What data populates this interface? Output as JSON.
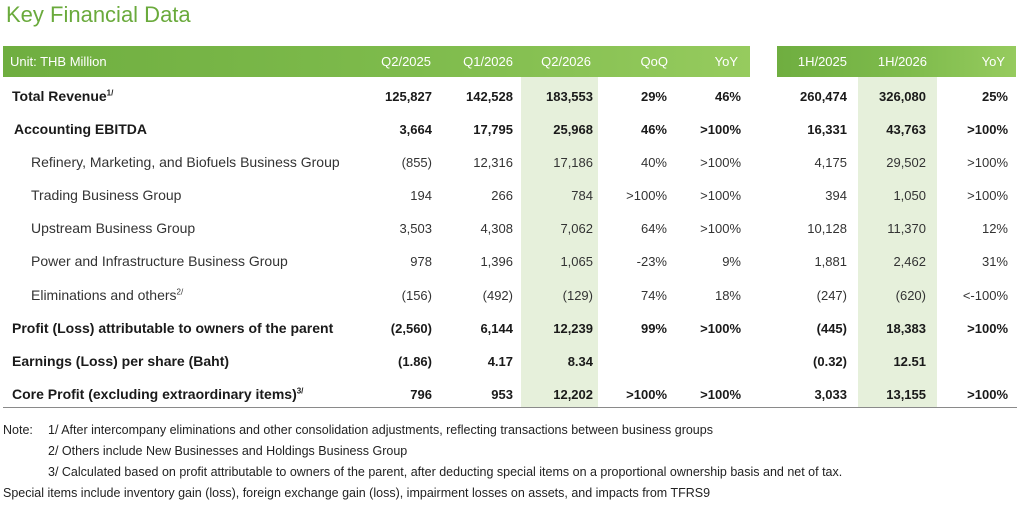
{
  "title": "Key Financial Data",
  "header": {
    "unit": "Unit: THB Million",
    "cols": [
      "Q2/2025",
      "Q1/2026",
      "Q2/2026",
      "QoQ",
      "YoY"
    ],
    "cols_right": [
      "1H/2025",
      "1H/2026",
      "YoY"
    ]
  },
  "rows": [
    {
      "label": "Total Revenue",
      "sup": "1/",
      "vals": [
        "125,827",
        "142,528",
        "183,553",
        "29%",
        "46%"
      ],
      "vals_right": [
        "260,474",
        "326,080",
        "25%"
      ]
    },
    {
      "label": "Accounting EBITDA",
      "sup": "",
      "vals": [
        "3,664",
        "17,795",
        "25,968",
        "46%",
        ">100%"
      ],
      "vals_right": [
        "16,331",
        "43,763",
        ">100%"
      ]
    },
    {
      "label": "Refinery, Marketing, and Biofuels Business Group",
      "sup": "",
      "vals": [
        "(855)",
        "12,316",
        "17,186",
        "40%",
        ">100%"
      ],
      "vals_right": [
        "4,175",
        "29,502",
        ">100%"
      ]
    },
    {
      "label": "Trading Business Group",
      "sup": "",
      "vals": [
        "194",
        "266",
        "784",
        ">100%",
        ">100%"
      ],
      "vals_right": [
        "394",
        "1,050",
        ">100%"
      ]
    },
    {
      "label": "Upstream Business Group",
      "sup": "",
      "vals": [
        "3,503",
        "4,308",
        "7,062",
        "64%",
        ">100%"
      ],
      "vals_right": [
        "10,128",
        "11,370",
        "12%"
      ]
    },
    {
      "label": "Power and Infrastructure Business Group",
      "sup": "",
      "vals": [
        "978",
        "1,396",
        "1,065",
        "-23%",
        "9%"
      ],
      "vals_right": [
        "1,881",
        "2,462",
        "31%"
      ]
    },
    {
      "label": "Eliminations and others",
      "sup": "2/",
      "vals": [
        "(156)",
        "(492)",
        "(129)",
        "74%",
        "18%"
      ],
      "vals_right": [
        "(247)",
        "(620)",
        "<-100%"
      ]
    },
    {
      "label": "Profit (Loss) attributable to owners of the parent",
      "sup": "",
      "vals": [
        "(2,560)",
        "6,144",
        "12,239",
        "99%",
        ">100%"
      ],
      "vals_right": [
        "(445)",
        "18,383",
        ">100%"
      ]
    },
    {
      "label": "Earnings (Loss) per share (Baht)",
      "sup": "",
      "vals": [
        "(1.86)",
        "4.17",
        "8.34",
        "",
        ""
      ],
      "vals_right": [
        "(0.32)",
        "12.51",
        ""
      ]
    },
    {
      "label": "Core Profit (excluding extraordinary items)",
      "sup": "3/",
      "vals": [
        "796",
        "953",
        "12,202",
        ">100%",
        ">100%"
      ],
      "vals_right": [
        "3,033",
        "13,155",
        ">100%"
      ]
    }
  ],
  "notes": {
    "prefix": "Note:",
    "n1": "1/ After intercompany eliminations and other consolidation adjustments, reflecting transactions between business groups",
    "n2": "2/ Others include New Businesses and Holdings Business Group",
    "n3a": "3/ Calculated based on profit attributable to owners of the parent, after deducting special items on a proportional ownership basis and net of tax.",
    "n3b": "Special items include inventory gain (loss), foreign exchange gain (loss), impairment losses on assets, and impacts from TFRS9"
  },
  "colors": {
    "accent": "#6aaa3c",
    "header": "#7ebb4c",
    "highlight": "#e6f0db"
  }
}
